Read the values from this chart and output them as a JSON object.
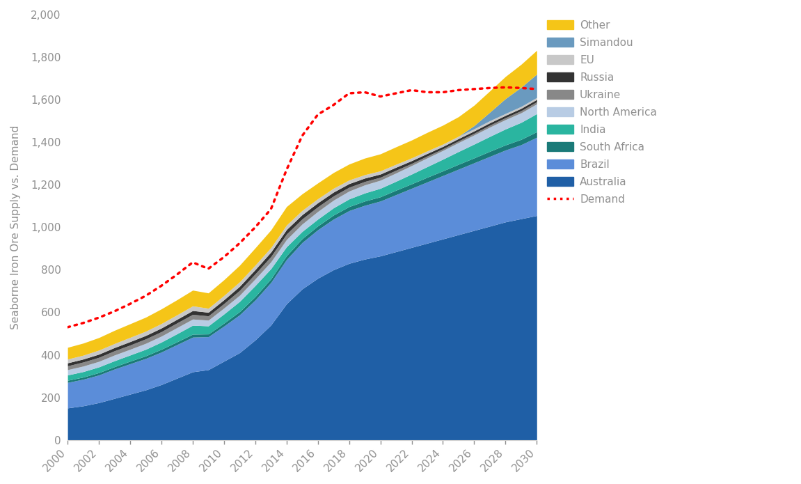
{
  "title": "",
  "ylabel": "Seaborne Iron Ore Supply vs. Demand",
  "xlabel": "",
  "ylim": [
    0,
    2000
  ],
  "years": [
    2000,
    2001,
    2002,
    2003,
    2004,
    2005,
    2006,
    2007,
    2008,
    2009,
    2010,
    2011,
    2012,
    2013,
    2014,
    2015,
    2016,
    2017,
    2018,
    2019,
    2020,
    2021,
    2022,
    2023,
    2024,
    2025,
    2026,
    2027,
    2028,
    2029,
    2030
  ],
  "series": {
    "Australia": [
      150,
      160,
      175,
      195,
      215,
      235,
      260,
      290,
      320,
      330,
      370,
      410,
      470,
      540,
      640,
      710,
      760,
      800,
      830,
      850,
      865,
      885,
      905,
      925,
      945,
      965,
      985,
      1005,
      1025,
      1040,
      1055
    ],
    "Brazil": [
      120,
      125,
      130,
      138,
      143,
      148,
      153,
      158,
      163,
      155,
      165,
      178,
      188,
      200,
      208,
      218,
      228,
      238,
      248,
      253,
      258,
      268,
      278,
      288,
      298,
      308,
      318,
      328,
      338,
      348,
      368
    ],
    "South Africa": [
      10,
      10,
      11,
      11,
      12,
      12,
      13,
      13,
      14,
      13,
      14,
      15,
      16,
      17,
      18,
      18,
      18,
      19,
      19,
      20,
      20,
      21,
      21,
      22,
      22,
      23,
      23,
      24,
      24,
      25,
      26
    ],
    "India": [
      25,
      26,
      27,
      28,
      29,
      31,
      34,
      38,
      42,
      38,
      43,
      48,
      52,
      48,
      42,
      34,
      32,
      34,
      36,
      38,
      40,
      42,
      46,
      50,
      55,
      60,
      65,
      70,
      75,
      80,
      85
    ],
    "North America": [
      25,
      26,
      26,
      27,
      27,
      28,
      28,
      29,
      29,
      27,
      28,
      29,
      31,
      32,
      34,
      35,
      36,
      36,
      37,
      38,
      38,
      39,
      40,
      41,
      41,
      42,
      43,
      44,
      44,
      45,
      46
    ],
    "Ukraine": [
      18,
      19,
      19,
      20,
      20,
      21,
      21,
      22,
      22,
      20,
      21,
      23,
      24,
      25,
      26,
      24,
      22,
      20,
      18,
      16,
      14,
      13,
      10,
      9,
      8,
      8,
      8,
      9,
      9,
      10,
      10
    ],
    "Russia": [
      14,
      14,
      15,
      15,
      16,
      16,
      17,
      17,
      18,
      17,
      18,
      19,
      20,
      21,
      21,
      20,
      19,
      18,
      17,
      16,
      15,
      14,
      13,
      12,
      11,
      11,
      11,
      11,
      11,
      11,
      11
    ],
    "EU": [
      18,
      18,
      19,
      19,
      20,
      20,
      21,
      21,
      22,
      19,
      20,
      21,
      21,
      21,
      21,
      20,
      19,
      18,
      17,
      16,
      15,
      14,
      13,
      12,
      11,
      11,
      10,
      10,
      9,
      9,
      9
    ],
    "Simandou": [
      0,
      0,
      0,
      0,
      0,
      0,
      0,
      0,
      0,
      0,
      0,
      0,
      0,
      0,
      0,
      0,
      0,
      0,
      0,
      0,
      0,
      0,
      0,
      0,
      0,
      0,
      15,
      40,
      70,
      90,
      110
    ],
    "Other": [
      55,
      57,
      59,
      62,
      64,
      66,
      69,
      71,
      74,
      72,
      74,
      78,
      81,
      83,
      87,
      78,
      74,
      74,
      75,
      78,
      80,
      82,
      84,
      87,
      89,
      92,
      96,
      100,
      104,
      108,
      112
    ]
  },
  "demand": [
    530,
    550,
    575,
    605,
    640,
    678,
    725,
    778,
    835,
    805,
    860,
    925,
    1000,
    1085,
    1270,
    1430,
    1530,
    1575,
    1630,
    1635,
    1615,
    1630,
    1645,
    1635,
    1635,
    1645,
    1650,
    1655,
    1658,
    1655,
    1650
  ],
  "colors": {
    "Australia": "#1f5fa6",
    "Brazil": "#5b8dd9",
    "South Africa": "#1a7a78",
    "India": "#2ab5a0",
    "North America": "#b8cce4",
    "Ukraine": "#888888",
    "Russia": "#333333",
    "EU": "#c8c8c8",
    "Simandou": "#6a9abf",
    "Other": "#f5c518"
  },
  "series_order": [
    "Australia",
    "Brazil",
    "South Africa",
    "India",
    "North America",
    "Ukraine",
    "Russia",
    "EU",
    "Simandou",
    "Other"
  ],
  "legend_order": [
    "Other",
    "Simandou",
    "EU",
    "Russia",
    "Ukraine",
    "North America",
    "India",
    "South Africa",
    "Brazil",
    "Australia",
    "Demand"
  ],
  "legend_colors": {
    "Other": "#f5c518",
    "Simandou": "#6a9abf",
    "EU": "#c8c8c8",
    "Russia": "#333333",
    "Ukraine": "#888888",
    "North America": "#b8cce4",
    "India": "#2ab5a0",
    "South Africa": "#1a7a78",
    "Brazil": "#5b8dd9",
    "Australia": "#1f5fa6",
    "Demand": "#ff0000"
  },
  "background_color": "#ffffff",
  "text_color": "#909090",
  "ytick_labels": [
    "0",
    "200",
    "400",
    "600",
    "800",
    "1,000",
    "1,200",
    "1,400",
    "1,600",
    "1,800",
    "2,000"
  ],
  "ytick_values": [
    0,
    200,
    400,
    600,
    800,
    1000,
    1200,
    1400,
    1600,
    1800,
    2000
  ],
  "xtick_labels": [
    "2000",
    "2002",
    "2004",
    "2006",
    "2008",
    "2010",
    "2012",
    "2014",
    "2016",
    "2018",
    "2020",
    "2022",
    "2024",
    "2026",
    "2028",
    "2030"
  ]
}
